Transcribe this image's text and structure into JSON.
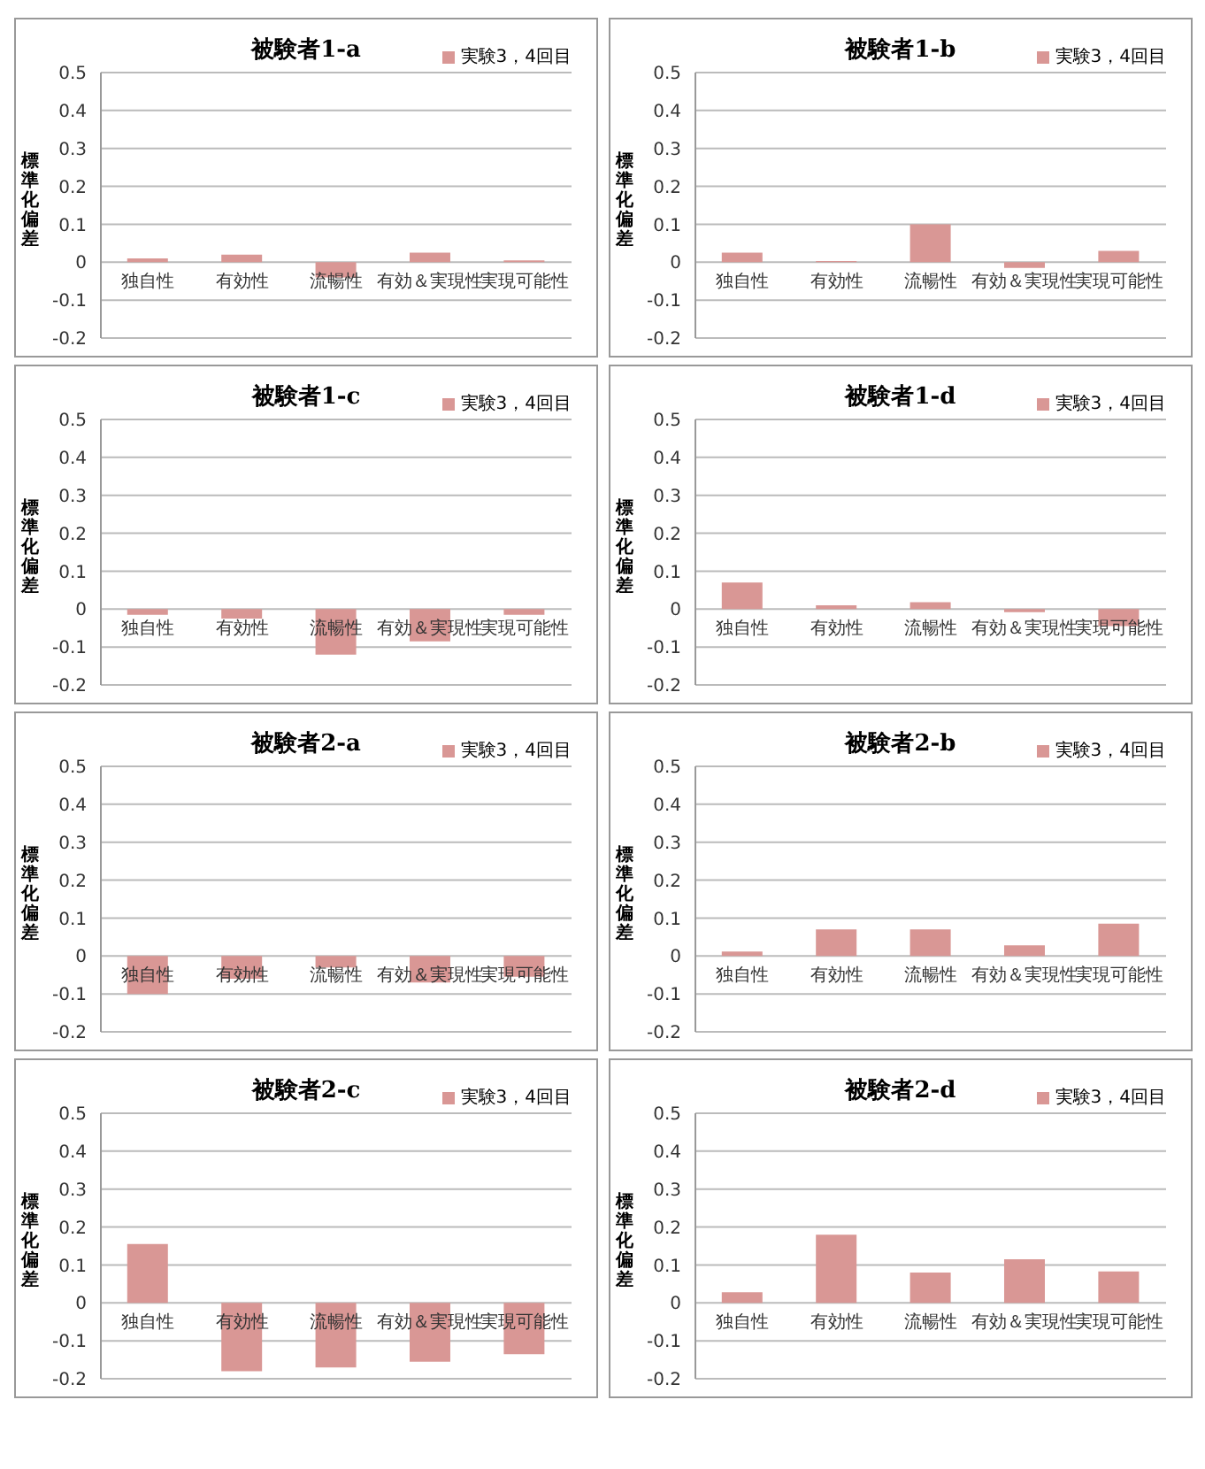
{
  "chart_data": [
    {
      "type": "bar",
      "title": "被験者1-a",
      "ylabel": "標準化偏差",
      "categories": [
        "独自性",
        "有効性",
        "流暢性",
        "有効＆実現性",
        "実現可能性"
      ],
      "series": [
        {
          "name": "実験3，4回目",
          "color": "#d99795",
          "values": [
            0.01,
            0.02,
            -0.04,
            0.025,
            0.005
          ]
        }
      ],
      "ylim": [
        -0.2,
        0.5
      ],
      "yticks": [
        -0.2,
        -0.1,
        0,
        0.1,
        0.2,
        0.3,
        0.4,
        0.5
      ],
      "grid": "y",
      "legend": "top right"
    },
    {
      "type": "bar",
      "title": "被験者1-b",
      "ylabel": "標準化偏差",
      "categories": [
        "独自性",
        "有効性",
        "流暢性",
        "有効＆実現性",
        "実現可能性"
      ],
      "series": [
        {
          "name": "実験3，4回目",
          "color": "#d99795",
          "values": [
            0.025,
            0.003,
            0.1,
            -0.015,
            0.03
          ]
        }
      ],
      "ylim": [
        -0.2,
        0.5
      ],
      "yticks": [
        -0.2,
        -0.1,
        0,
        0.1,
        0.2,
        0.3,
        0.4,
        0.5
      ],
      "grid": "y",
      "legend": "top right"
    },
    {
      "type": "bar",
      "title": "被験者1-c",
      "ylabel": "標準化偏差",
      "categories": [
        "独自性",
        "有効性",
        "流暢性",
        "有効＆実現性",
        "実現可能性"
      ],
      "series": [
        {
          "name": "実験3，4回目",
          "color": "#d99795",
          "values": [
            -0.015,
            -0.025,
            -0.12,
            -0.085,
            -0.015
          ]
        }
      ],
      "ylim": [
        -0.2,
        0.5
      ],
      "yticks": [
        -0.2,
        -0.1,
        0,
        0.1,
        0.2,
        0.3,
        0.4,
        0.5
      ],
      "grid": "y",
      "legend": "top right"
    },
    {
      "type": "bar",
      "title": "被験者1-d",
      "ylabel": "標準化偏差",
      "categories": [
        "独自性",
        "有効性",
        "流暢性",
        "有効＆実現性",
        "実現可能性"
      ],
      "series": [
        {
          "name": "実験3，4回目",
          "color": "#d99795",
          "values": [
            0.07,
            0.01,
            0.018,
            -0.008,
            -0.045
          ]
        }
      ],
      "ylim": [
        -0.2,
        0.5
      ],
      "yticks": [
        -0.2,
        -0.1,
        0,
        0.1,
        0.2,
        0.3,
        0.4,
        0.5
      ],
      "grid": "y",
      "legend": "top right"
    },
    {
      "type": "bar",
      "title": "被験者2-a",
      "ylabel": "標準化偏差",
      "categories": [
        "独自性",
        "有効性",
        "流暢性",
        "有効＆実現性",
        "実現可能性"
      ],
      "series": [
        {
          "name": "実験3，4回目",
          "color": "#d99795",
          "values": [
            -0.1,
            -0.06,
            -0.03,
            -0.07,
            -0.055
          ]
        }
      ],
      "ylim": [
        -0.2,
        0.5
      ],
      "yticks": [
        -0.2,
        -0.1,
        0,
        0.1,
        0.2,
        0.3,
        0.4,
        0.5
      ],
      "grid": "y",
      "legend": "top right"
    },
    {
      "type": "bar",
      "title": "被験者2-b",
      "ylabel": "標準化偏差",
      "categories": [
        "独自性",
        "有効性",
        "流暢性",
        "有効＆実現性",
        "実現可能性"
      ],
      "series": [
        {
          "name": "実験3，4回目",
          "color": "#d99795",
          "values": [
            0.012,
            0.07,
            0.07,
            0.028,
            0.085
          ]
        }
      ],
      "ylim": [
        -0.2,
        0.5
      ],
      "yticks": [
        -0.2,
        -0.1,
        0,
        0.1,
        0.2,
        0.3,
        0.4,
        0.5
      ],
      "grid": "y",
      "legend": "top right"
    },
    {
      "type": "bar",
      "title": "被験者2-c",
      "ylabel": "標準化偏差",
      "categories": [
        "独自性",
        "有効性",
        "流暢性",
        "有効＆実現性",
        "実現可能性"
      ],
      "series": [
        {
          "name": "実験3，4回目",
          "color": "#d99795",
          "values": [
            0.155,
            -0.18,
            -0.17,
            -0.155,
            -0.135
          ]
        }
      ],
      "ylim": [
        -0.2,
        0.5
      ],
      "yticks": [
        -0.2,
        -0.1,
        0,
        0.1,
        0.2,
        0.3,
        0.4,
        0.5
      ],
      "grid": "y",
      "legend": "top right"
    },
    {
      "type": "bar",
      "title": "被験者2-d",
      "ylabel": "標準化偏差",
      "categories": [
        "独自性",
        "有効性",
        "流暢性",
        "有効＆実現性",
        "実現可能性"
      ],
      "series": [
        {
          "name": "実験3，4回目",
          "color": "#d99795",
          "values": [
            0.028,
            0.18,
            0.08,
            0.115,
            0.083
          ]
        }
      ],
      "ylim": [
        -0.2,
        0.5
      ],
      "yticks": [
        -0.2,
        -0.1,
        0,
        0.1,
        0.2,
        0.3,
        0.4,
        0.5
      ],
      "grid": "y",
      "legend": "top right"
    }
  ]
}
